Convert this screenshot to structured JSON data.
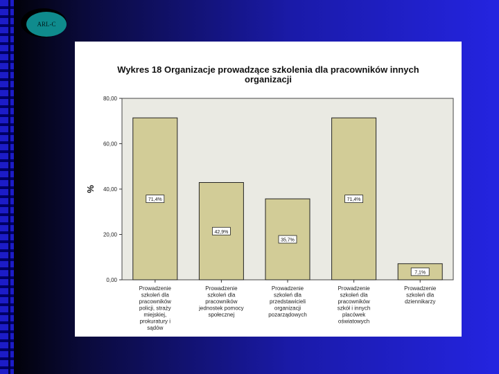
{
  "logo": {
    "text": "ARL-C"
  },
  "chart_data": {
    "type": "bar",
    "title_line1": "Wykres 18 Organizacje prowadzące szkolenia dla pracowników innych",
    "title_line2": "organizacji",
    "ylabel": "%",
    "ylim": [
      0,
      80
    ],
    "y_ticks": [
      "0,00",
      "20,00",
      "40,00",
      "60,00",
      "80,00"
    ],
    "categories": [
      [
        "Prowadzenie",
        "szkoleń dla",
        "pracowników",
        "policji, straży",
        "miejskiej,",
        "prokuratury i",
        "sądów"
      ],
      [
        "Prowadzenie",
        "szkoleń dla",
        "pracowników",
        "jednostek pomocy",
        "społecznej"
      ],
      [
        "Prowadzenie",
        "szkoleń dla",
        "przedstawicieli",
        "organizacji",
        "pozarządowych"
      ],
      [
        "Prowadzenie",
        "szkoleń dla",
        "pracowników",
        "szkół i innych",
        "placówek",
        "oświatowych"
      ],
      [
        "Prowadzenie",
        "szkoleń dla",
        "dziennikarzy"
      ]
    ],
    "values": [
      71.4,
      42.9,
      35.7,
      71.4,
      7.1
    ],
    "data_labels": [
      "71,4%",
      "42,9%",
      "35,7%",
      "71,4%",
      "7,1%"
    ],
    "colors": {
      "plot_bg": "#eaeae3",
      "bar_fill": "#d2cc97",
      "bar_stroke": "#222222"
    }
  }
}
